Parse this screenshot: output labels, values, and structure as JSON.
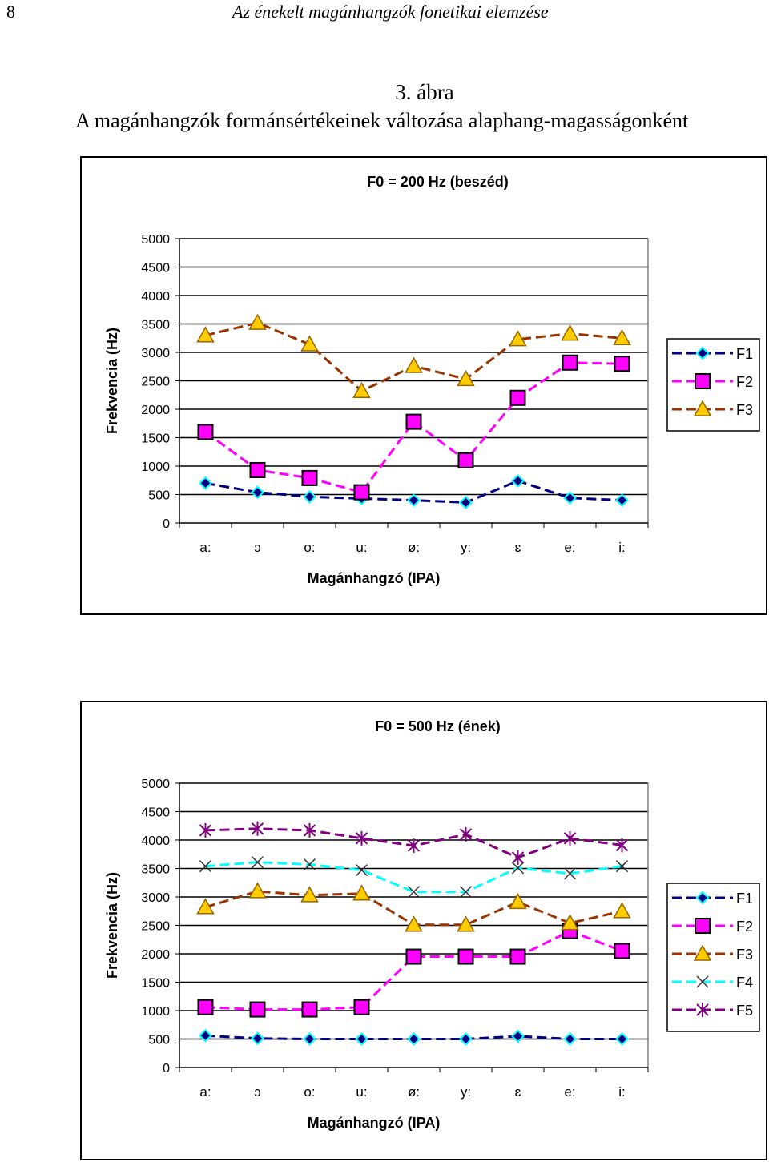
{
  "page": {
    "number": "8",
    "running_head": "Az énekelt magánhangzók fonetikai elemzése"
  },
  "figure": {
    "number": "3. ábra",
    "caption": "A magánhangzók formánsértékeinek változása alaphang-magasságonként"
  },
  "chart_data": [
    {
      "type": "line",
      "title": "F0 = 200 Hz (beszéd)",
      "xlabel": "Magánhangzó (IPA)",
      "ylabel": "Frekvencia (Hz)",
      "ylim": [
        0,
        5000
      ],
      "yticks": [
        "0",
        "500",
        "1000",
        "1500",
        "2000",
        "2500",
        "3000",
        "3500",
        "4000",
        "4500",
        "5000"
      ],
      "grid": true,
      "legend": "right",
      "categories": [
        "a:",
        "ɔ",
        "o:",
        "u:",
        "ø:",
        "y:",
        "ɛ",
        "e:",
        "i:"
      ],
      "series": [
        {
          "name": "F1",
          "color": "#000080",
          "marker": "diamond",
          "values": [
            700,
            540,
            460,
            430,
            400,
            360,
            740,
            440,
            400
          ]
        },
        {
          "name": "F2",
          "color": "#ff00ff",
          "marker": "square",
          "values": [
            1600,
            930,
            790,
            540,
            1780,
            1100,
            2200,
            2820,
            2800
          ]
        },
        {
          "name": "F3",
          "color": "#993300",
          "marker": "triangle",
          "values": [
            3300,
            3520,
            3140,
            2320,
            2760,
            2530,
            3230,
            3330,
            3250
          ]
        }
      ]
    },
    {
      "type": "line",
      "title": "F0 = 500 Hz (ének)",
      "xlabel": "Magánhangzó (IPA)",
      "ylabel": "Frekvencia (Hz)",
      "ylim": [
        0,
        5000
      ],
      "yticks": [
        "0",
        "500",
        "1000",
        "1500",
        "2000",
        "2500",
        "3000",
        "3500",
        "4000",
        "4500",
        "5000"
      ],
      "grid": true,
      "legend": "right",
      "categories": [
        "a:",
        "ɔ",
        "o:",
        "u:",
        "ø:",
        "y:",
        "ɛ",
        "e:",
        "i:"
      ],
      "series": [
        {
          "name": "F1",
          "color": "#000080",
          "marker": "diamond",
          "values": [
            560,
            510,
            500,
            500,
            500,
            500,
            550,
            500,
            500
          ]
        },
        {
          "name": "F2",
          "color": "#ff00ff",
          "marker": "square",
          "values": [
            1060,
            1020,
            1020,
            1060,
            1950,
            1950,
            1950,
            2400,
            2050
          ]
        },
        {
          "name": "F3",
          "color": "#993300",
          "marker": "triangle",
          "values": [
            2820,
            3100,
            3030,
            3060,
            2510,
            2510,
            2910,
            2540,
            2750
          ]
        },
        {
          "name": "F4",
          "color": "#00ffff",
          "marker": "x",
          "values": [
            3540,
            3610,
            3570,
            3470,
            3090,
            3090,
            3510,
            3410,
            3540
          ]
        },
        {
          "name": "F5",
          "color": "#800080",
          "marker": "star",
          "values": [
            4170,
            4200,
            4170,
            4030,
            3900,
            4100,
            3690,
            4030,
            3910
          ]
        }
      ]
    }
  ]
}
